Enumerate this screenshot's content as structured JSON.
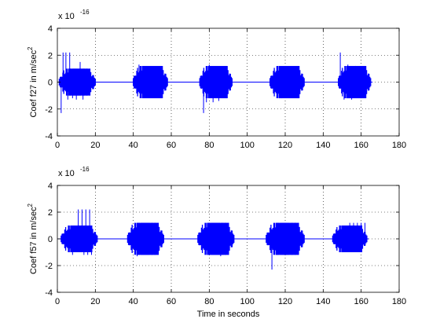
{
  "figure": {
    "background": "#ffffff",
    "line_color": "#0000ff"
  },
  "chart_data": [
    {
      "type": "line",
      "ylabel": "Coef f27 in m/sec",
      "ylabel_superscript": "2",
      "xlabel": "",
      "scale_prefix": "x 10",
      "scale_exponent": "-16",
      "xlim": [
        0,
        180
      ],
      "ylim": [
        -4,
        4
      ],
      "xticks": [
        0,
        20,
        40,
        60,
        80,
        100,
        120,
        140,
        160,
        180
      ],
      "yticks": [
        -4,
        -2,
        0,
        2,
        4
      ],
      "grid": true,
      "bursts": [
        {
          "start": 1,
          "end": 20,
          "body": 1.0,
          "spikes": [
            {
              "x": 2,
              "y": -2.3
            },
            {
              "x": 3,
              "y": 2.2
            },
            {
              "x": 4.5,
              "y": 2.2
            },
            {
              "x": 5.5,
              "y": -1.3
            },
            {
              "x": 6.5,
              "y": 2.2
            },
            {
              "x": 8,
              "y": -1.2
            },
            {
              "x": 10,
              "y": -1.3
            },
            {
              "x": 12,
              "y": 1.5
            },
            {
              "x": 13.5,
              "y": -1.3
            }
          ]
        },
        {
          "start": 40,
          "end": 58,
          "body": 1.2,
          "spikes": [
            {
              "x": 43,
              "y": 1.3
            },
            {
              "x": 45,
              "y": -1.0
            }
          ]
        },
        {
          "start": 75,
          "end": 92,
          "body": 1.2,
          "spikes": [
            {
              "x": 77,
              "y": -2.3
            },
            {
              "x": 78.5,
              "y": -1.5
            },
            {
              "x": 80,
              "y": 1.3
            },
            {
              "x": 82,
              "y": -1.5
            },
            {
              "x": 85,
              "y": -1.4
            }
          ]
        },
        {
          "start": 112,
          "end": 130,
          "body": 1.2,
          "spikes": [
            {
              "x": 116,
              "y": 1.2
            },
            {
              "x": 118,
              "y": -1.2
            }
          ]
        },
        {
          "start": 148,
          "end": 165,
          "body": 1.2,
          "spikes": [
            {
              "x": 149,
              "y": 2.2
            },
            {
              "x": 151,
              "y": -1.3
            },
            {
              "x": 153,
              "y": 1.3
            },
            {
              "x": 155,
              "y": -1.3
            },
            {
              "x": 157,
              "y": 1.2
            },
            {
              "x": 160,
              "y": -1.2
            }
          ]
        }
      ]
    },
    {
      "type": "line",
      "ylabel": "Coef f57 in m/sec",
      "ylabel_superscript": "2",
      "xlabel": "Time in seconds",
      "scale_prefix": "x 10",
      "scale_exponent": "-16",
      "xlim": [
        0,
        180
      ],
      "ylim": [
        -4,
        4
      ],
      "xticks": [
        0,
        20,
        40,
        60,
        80,
        100,
        120,
        140,
        160,
        180
      ],
      "yticks": [
        -4,
        -2,
        0,
        2,
        4
      ],
      "grid": true,
      "bursts": [
        {
          "start": 2,
          "end": 21,
          "body": 1.0,
          "spikes": [
            {
              "x": 11,
              "y": 2.2
            },
            {
              "x": 12,
              "y": -1.0
            },
            {
              "x": 13,
              "y": 2.2
            },
            {
              "x": 14,
              "y": -1.2
            },
            {
              "x": 15,
              "y": 2.2
            },
            {
              "x": 16,
              "y": -1.2
            },
            {
              "x": 17,
              "y": 2.2
            },
            {
              "x": 18,
              "y": -1.2
            },
            {
              "x": 8,
              "y": -1.2
            }
          ]
        },
        {
          "start": 37,
          "end": 56,
          "body": 1.2,
          "spikes": [
            {
              "x": 42,
              "y": -1.3
            }
          ]
        },
        {
          "start": 74,
          "end": 93,
          "body": 1.2,
          "spikes": [
            {
              "x": 86,
              "y": -1.3
            }
          ]
        },
        {
          "start": 110,
          "end": 130,
          "body": 1.2,
          "spikes": [
            {
              "x": 113,
              "y": -2.3
            },
            {
              "x": 125,
              "y": -1.0
            }
          ]
        },
        {
          "start": 145,
          "end": 163,
          "body": 1.0,
          "spikes": [
            {
              "x": 154,
              "y": 1.2
            },
            {
              "x": 156,
              "y": 1.2
            },
            {
              "x": 158,
              "y": 1.2
            },
            {
              "x": 160,
              "y": 1.2
            },
            {
              "x": 162,
              "y": 1.2
            }
          ]
        }
      ]
    }
  ]
}
